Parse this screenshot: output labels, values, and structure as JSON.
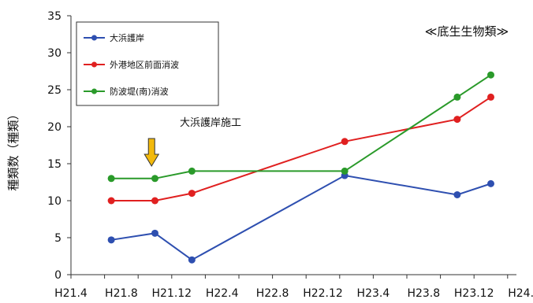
{
  "chart_data": {
    "type": "line",
    "title": "",
    "corner_label": "≪底生生物類≫",
    "ylabel": "種類数（種類）",
    "xlabel": "",
    "ylim": [
      0,
      35
    ],
    "yticks": [
      0,
      5,
      10,
      15,
      20,
      25,
      30,
      35
    ],
    "xticks": [
      "H21.4",
      "H21.8",
      "H21.12",
      "H22.4",
      "H22.8",
      "H22.12",
      "H23.4",
      "H23.8",
      "H23.12",
      "H24.4"
    ],
    "grid": false,
    "legend_position": "top-left",
    "annotation": {
      "text": "大浜護岸施工",
      "arrow_at_x": 2.4,
      "arrow_color": "#f2b90c"
    },
    "series": [
      {
        "name": "大浜護岸",
        "color": "#2e4fb0",
        "points": [
          {
            "x": 1.2,
            "y": 4.7
          },
          {
            "x": 2.5,
            "y": 5.6
          },
          {
            "x": 3.6,
            "y": 2.0
          },
          {
            "x": 8.15,
            "y": 13.4
          },
          {
            "x": 11.5,
            "y": 10.8
          },
          {
            "x": 12.5,
            "y": 12.3
          }
        ]
      },
      {
        "name": "外港地区前面消波",
        "color": "#e02020",
        "points": [
          {
            "x": 1.2,
            "y": 10
          },
          {
            "x": 2.5,
            "y": 10
          },
          {
            "x": 3.6,
            "y": 11
          },
          {
            "x": 8.15,
            "y": 18
          },
          {
            "x": 11.5,
            "y": 21
          },
          {
            "x": 12.5,
            "y": 24
          }
        ]
      },
      {
        "name": "防波堤(南)消波",
        "color": "#2a9a2a",
        "points": [
          {
            "x": 1.2,
            "y": 13
          },
          {
            "x": 2.5,
            "y": 13
          },
          {
            "x": 3.6,
            "y": 14
          },
          {
            "x": 8.15,
            "y": 14
          },
          {
            "x": 11.5,
            "y": 24
          },
          {
            "x": 12.5,
            "y": 27
          }
        ]
      }
    ]
  }
}
